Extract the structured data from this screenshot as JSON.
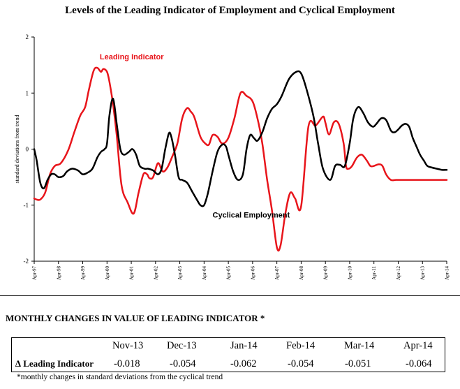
{
  "chart_data": {
    "type": "line",
    "title": "Levels of the Leading Indicator of Employment and Cyclical Employment",
    "ylabel": "standard deviations from trend",
    "xlabel": "",
    "ylim": [
      -2,
      2
    ],
    "xlim": [
      0,
      17
    ],
    "y_ticks": [
      2,
      1,
      0,
      -1,
      -2
    ],
    "x_tick_labels": [
      "Apr-97",
      "Apr-98",
      "Apr-99",
      "Apr-00",
      "Apr-01",
      "Apr-02",
      "Apr-03",
      "Apr-04",
      "Apr-05",
      "Apr-06",
      "Apr-07",
      "Apr-08",
      "Apr-09",
      "Apr-10",
      "Apr-11",
      "Apr-12",
      "Apr-13",
      "Apr-14"
    ],
    "annotations": [
      {
        "text": "Leading Indicator",
        "series": "Leading Indicator",
        "color": "#e8151b",
        "x": 2.7,
        "y": 1.6
      },
      {
        "text": "Cyclical Employment",
        "series": "Cyclical Employment",
        "color": "#000000",
        "x": 7.35,
        "y": -1.22
      }
    ],
    "series": [
      {
        "name": "Leading Indicator",
        "color": "#e8151b",
        "x": [
          0,
          0.1,
          0.25,
          0.45,
          0.65,
          0.85,
          1.1,
          1.4,
          1.65,
          1.9,
          2.1,
          2.25,
          2.45,
          2.6,
          2.75,
          2.85,
          3.0,
          3.1,
          3.25,
          3.4,
          3.6,
          3.85,
          4.1,
          4.3,
          4.5,
          4.65,
          4.75,
          4.9,
          5.1,
          5.3,
          5.5,
          5.7,
          5.9,
          6.1,
          6.3,
          6.45,
          6.6,
          6.85,
          7.05,
          7.2,
          7.35,
          7.55,
          7.75,
          8.0,
          8.25,
          8.5,
          8.75,
          9.0,
          9.2,
          9.4,
          9.6,
          9.8,
          10.0,
          10.15,
          10.35,
          10.55,
          10.75,
          11.0,
          11.3,
          11.6,
          11.9,
          12.0,
          12.15,
          12.35,
          12.55,
          12.75,
          12.85,
          12.95,
          13.1,
          13.3,
          13.5,
          13.7,
          13.85,
          14.0,
          14.2,
          14.35,
          14.5,
          14.7,
          14.9,
          15.1,
          15.3,
          15.45,
          15.7,
          15.9,
          16.1,
          16.3,
          16.5,
          16.7,
          16.9,
          17.0
        ],
        "values": [
          -0.88,
          -0.9,
          -0.9,
          -0.78,
          -0.45,
          -0.3,
          -0.25,
          -0.02,
          0.3,
          0.6,
          0.75,
          1.05,
          1.4,
          1.45,
          1.38,
          1.43,
          1.38,
          1.2,
          0.8,
          0.25,
          -0.65,
          -0.95,
          -1.15,
          -0.78,
          -0.45,
          -0.45,
          -0.52,
          -0.5,
          -0.25,
          -0.4,
          -0.32,
          -0.12,
          0.1,
          0.55,
          0.73,
          0.67,
          0.57,
          0.22,
          0.1,
          0.08,
          0.25,
          0.22,
          0.1,
          0.2,
          0.55,
          1.0,
          0.95,
          0.85,
          0.55,
          0.1,
          -0.55,
          -1.1,
          -1.75,
          -1.72,
          -1.15,
          -0.78,
          -0.88,
          -1.02,
          0.4,
          0.42,
          0.58,
          0.47,
          0.26,
          0.48,
          0.45,
          0.1,
          -0.3,
          -0.35,
          -0.3,
          -0.15,
          -0.1,
          -0.2,
          -0.3,
          -0.3,
          -0.27,
          -0.3,
          -0.45,
          -0.55,
          -0.55,
          -0.55,
          -0.55,
          -0.55,
          -0.55,
          -0.55,
          -0.55,
          -0.55,
          -0.55,
          -0.55,
          -0.55,
          -0.55
        ]
      },
      {
        "name": "Cyclical Employment",
        "color": "#000000",
        "x": [
          0,
          0.1,
          0.25,
          0.4,
          0.55,
          0.7,
          0.85,
          1.0,
          1.2,
          1.35,
          1.55,
          1.8,
          2.0,
          2.2,
          2.4,
          2.6,
          2.75,
          2.9,
          3.0,
          3.1,
          3.25,
          3.4,
          3.55,
          3.7,
          3.9,
          4.05,
          4.2,
          4.35,
          4.55,
          4.7,
          4.9,
          5.1,
          5.25,
          5.4,
          5.55,
          5.65,
          5.8,
          5.95,
          6.1,
          6.3,
          6.5,
          6.7,
          6.85,
          7.0,
          7.15,
          7.35,
          7.55,
          7.75,
          7.9,
          8.0,
          8.2,
          8.4,
          8.6,
          8.75,
          8.9,
          9.05,
          9.2,
          9.4,
          9.6,
          9.8,
          10.0,
          10.2,
          10.5,
          10.8,
          11.0,
          11.2,
          11.5,
          11.7,
          11.9,
          12.2,
          12.4,
          12.6,
          12.8,
          13.0,
          13.15,
          13.35,
          13.55,
          13.75,
          13.95,
          14.1,
          14.3,
          14.5,
          14.7,
          14.85,
          15.0,
          15.15,
          15.3,
          15.45,
          15.6,
          15.75,
          15.9,
          16.05,
          16.2,
          16.4,
          16.6,
          16.8,
          17.0
        ],
        "values": [
          0.0,
          -0.2,
          -0.6,
          -0.7,
          -0.55,
          -0.45,
          -0.45,
          -0.5,
          -0.48,
          -0.4,
          -0.35,
          -0.38,
          -0.45,
          -0.42,
          -0.35,
          -0.15,
          -0.05,
          0.0,
          0.1,
          0.6,
          0.9,
          0.45,
          0.0,
          -0.1,
          -0.05,
          0.0,
          -0.1,
          -0.3,
          -0.35,
          -0.35,
          -0.38,
          -0.45,
          -0.35,
          0.0,
          0.28,
          0.22,
          -0.1,
          -0.5,
          -0.55,
          -0.6,
          -0.75,
          -0.9,
          -1.0,
          -1.0,
          -0.8,
          -0.4,
          -0.05,
          0.08,
          0.05,
          -0.1,
          -0.4,
          -0.55,
          -0.45,
          0.0,
          0.25,
          0.2,
          0.15,
          0.3,
          0.55,
          0.72,
          0.8,
          0.95,
          1.25,
          1.38,
          1.35,
          1.1,
          0.6,
          0.1,
          -0.35,
          -0.55,
          -0.3,
          -0.28,
          -0.3,
          0.1,
          0.55,
          0.75,
          0.65,
          0.48,
          0.4,
          0.45,
          0.55,
          0.52,
          0.33,
          0.3,
          0.35,
          0.42,
          0.45,
          0.4,
          0.2,
          0.05,
          -0.1,
          -0.2,
          -0.3,
          -0.33,
          -0.35,
          -0.37,
          -0.37
        ]
      }
    ]
  },
  "table": {
    "heading": "MONTHLY CHANGES IN VALUE OF LEADING INDICATOR *",
    "columns": [
      "Nov-13",
      "Dec-13",
      "Jan-14",
      "Feb-14",
      "Mar-14",
      "Apr-14"
    ],
    "row_label": "∆ Leading Indicator",
    "values": [
      "-0.018",
      "-0.054",
      "-0.062",
      "-0.054",
      "-0.051",
      "-0.064"
    ],
    "footnote": "*monthly changes in standard deviations from the cyclical trend"
  }
}
